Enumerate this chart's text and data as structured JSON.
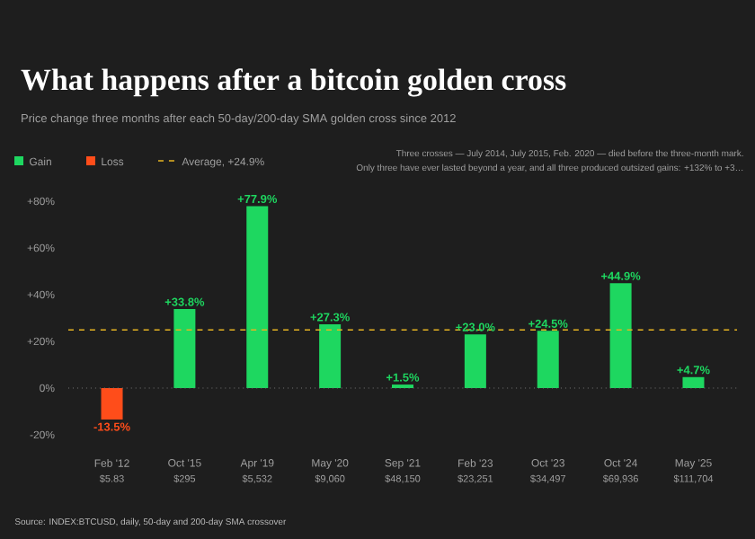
{
  "chart_data": {
    "type": "bar",
    "title": "What happens after a bitcoin golden cross",
    "subtitle": "Price change three months after each 50-day/200-day SMA golden cross since 2012",
    "categories": [
      "Feb '12",
      "Oct '15",
      "Apr '19",
      "May '20",
      "Sep '21",
      "Feb '23",
      "Oct '23",
      "Oct '24",
      "May '25"
    ],
    "series": [
      {
        "name": "Gain",
        "color": "#1ed760",
        "values": [
          null,
          33.8,
          77.9,
          27.3,
          1.5,
          23.0,
          24.5,
          44.9,
          4.7
        ],
        "value_labels": [
          null,
          "+33.8%",
          "+77.9%",
          "+27.3%",
          "+1.5%",
          "+23.0%",
          "+24.5%",
          "+44.9%",
          "+4.7%"
        ]
      },
      {
        "name": "Loss",
        "color": "#ff4d1a",
        "values": [
          -13.5,
          null,
          null,
          null,
          null,
          null,
          null,
          null,
          null
        ],
        "value_labels": [
          "-13.5%",
          null,
          null,
          null,
          null,
          null,
          null,
          null,
          null
        ]
      }
    ],
    "ylim": [
      -20,
      80
    ],
    "yticks": [
      {
        "value": -20,
        "label": "-20%"
      },
      {
        "value": 0,
        "label": "0%"
      },
      {
        "value": 20,
        "label": "+20%"
      },
      {
        "value": 40,
        "label": "+40%"
      },
      {
        "value": 60,
        "label": "+60%"
      },
      {
        "value": 80,
        "label": "+80%"
      }
    ],
    "ref_lines": [
      {
        "axis": "y",
        "value": 24.9,
        "label": "Average, +24.9%",
        "color": "#e6b422",
        "line_style": "dashed"
      },
      {
        "axis": "y",
        "value": 0,
        "color": "#777777",
        "line_style": "dotted"
      }
    ],
    "legend": "top left",
    "grid": false,
    "annotations": [
      "$5.83",
      "$295",
      "$5,532",
      "$9,060",
      "$48,150",
      "$23,251",
      "$34,497",
      "$69,936",
      "$111,704",
      "Three crosses — July 2014, July 2015, Feb. 2020 — died before the three-month mark.",
      "Only three have ever lasted beyond a year, and all three produced outsized gains: +132% to +3…",
      "Source: INDEX:BTCUSD, daily, 50-day and 200-day SMA crossover"
    ]
  }
}
